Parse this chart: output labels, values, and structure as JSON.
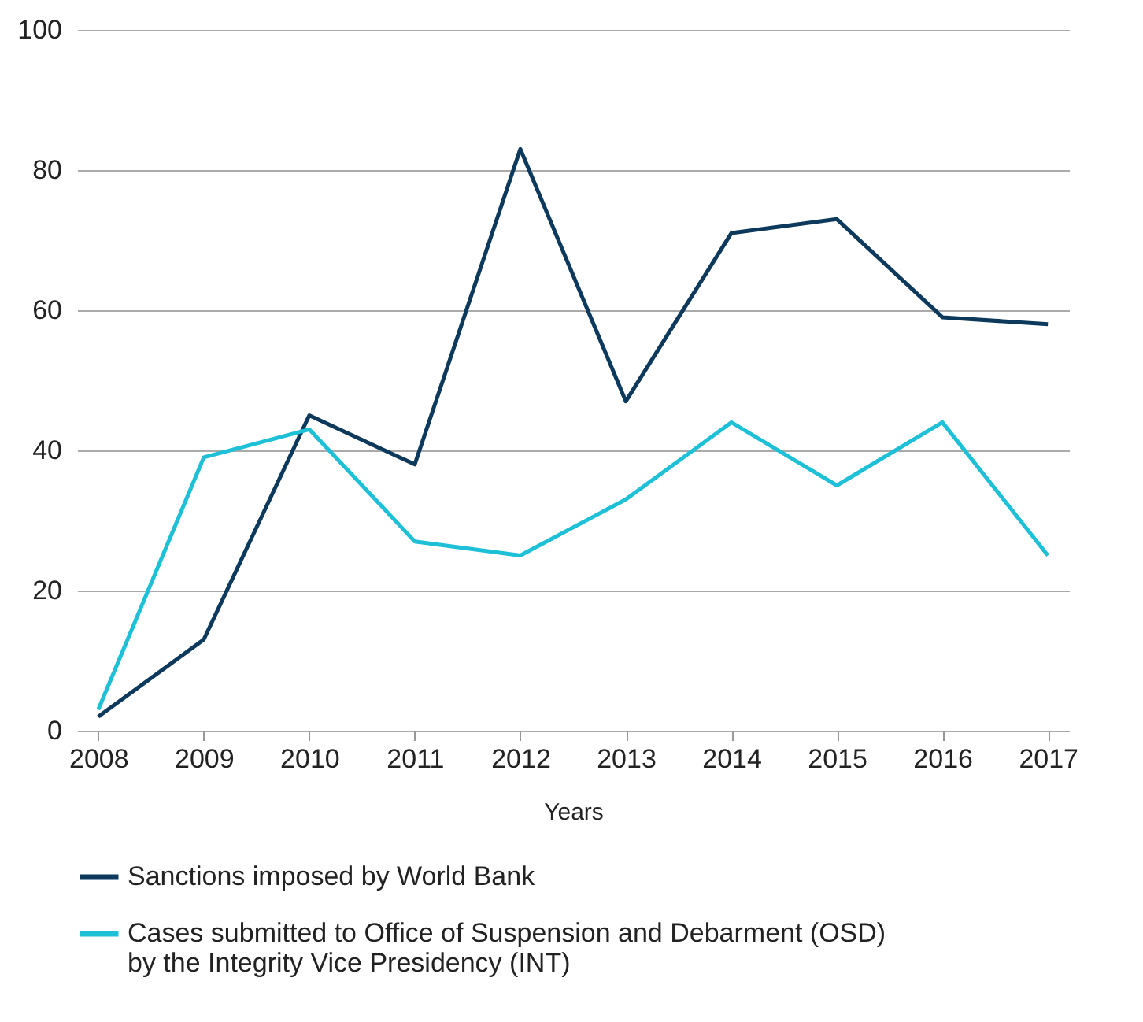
{
  "chart_data": {
    "type": "line",
    "xlabel": "Years",
    "categories": [
      "2008",
      "2009",
      "2010",
      "2011",
      "2012",
      "2013",
      "2014",
      "2015",
      "2016",
      "2017"
    ],
    "series": [
      {
        "name": "Sanctions imposed by World Bank",
        "color": "#0d3a5c",
        "values": [
          2,
          13,
          45,
          38,
          83,
          47,
          71,
          73,
          59,
          58
        ]
      },
      {
        "name": "Cases submitted to Office of Suspension and Debarment (OSD) by the Integrity Vice Presidency (INT)",
        "color": "#1ec0d8",
        "values": [
          3,
          39,
          43,
          27,
          25,
          33,
          44,
          35,
          44,
          25
        ]
      }
    ],
    "ylim": [
      0,
      100
    ],
    "yticks": [
      0,
      20,
      40,
      60,
      80,
      100
    ],
    "grid": "y",
    "legend": "bottom",
    "marker": "none",
    "line_style": "solid"
  }
}
